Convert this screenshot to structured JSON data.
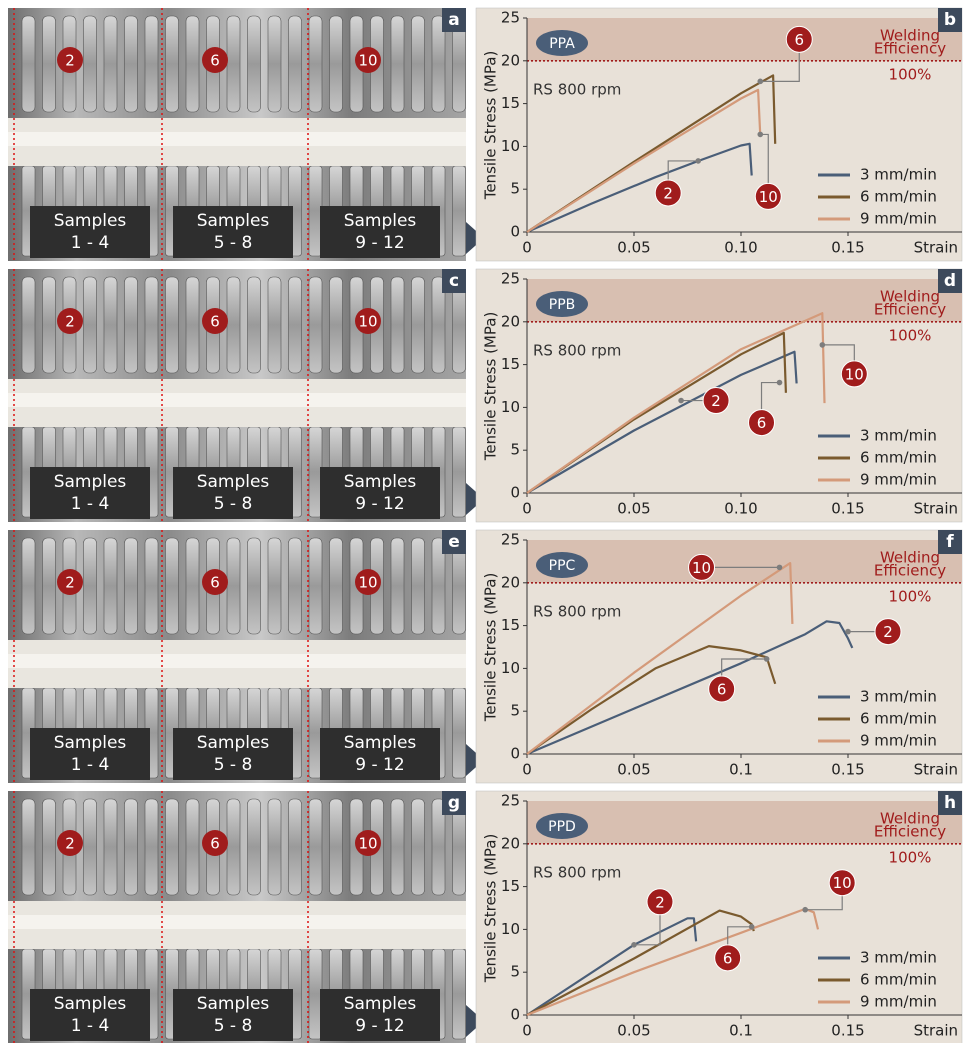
{
  "photos": [
    {
      "panel": "a",
      "markers": [
        "2",
        "6",
        "10"
      ],
      "labels": [
        [
          "Samples",
          "1 - 4"
        ],
        [
          "Samples",
          "5 - 8"
        ],
        [
          "Samples",
          "9 - 12"
        ]
      ]
    },
    {
      "panel": "c",
      "markers": [
        "2",
        "6",
        "10"
      ],
      "labels": [
        [
          "Samples",
          "1 - 4"
        ],
        [
          "Samples",
          "5 - 8"
        ],
        [
          "Samples",
          "9 - 12"
        ]
      ]
    },
    {
      "panel": "e",
      "markers": [
        "2",
        "6",
        "10"
      ],
      "labels": [
        [
          "Samples",
          "1 - 4"
        ],
        [
          "Samples",
          "5 - 8"
        ],
        [
          "Samples",
          "9 - 12"
        ]
      ]
    },
    {
      "panel": "g",
      "markers": [
        "2",
        "6",
        "10"
      ],
      "labels": [
        [
          "Samples",
          "1 - 4"
        ],
        [
          "Samples",
          "5 - 8"
        ],
        [
          "Samples",
          "9 - 12"
        ]
      ]
    }
  ],
  "chart_data": [
    {
      "type": "line",
      "panel": "b",
      "title": "PPA",
      "subtitle": "RS 800 rpm",
      "y_label": "Tensile Stress (MPa)",
      "x_label": "Strain",
      "xlim": [
        0,
        0.2
      ],
      "ylim": [
        0,
        25
      ],
      "xticks": [
        0,
        0.05,
        {
          "value": 0.1,
          "label": "0.10"
        },
        0.15
      ],
      "yticks": [
        0,
        5,
        10,
        15,
        20,
        25
      ],
      "threshold": 20,
      "threshold_label": [
        "Welding",
        "Efficiency",
        "100%"
      ],
      "series": [
        {
          "name": "3 mm/min",
          "color": "#4a5e78",
          "x": [
            0,
            0.03,
            0.06,
            0.08,
            0.1,
            0.104,
            0.105
          ],
          "values": [
            0,
            3.3,
            6.4,
            8.3,
            10.1,
            10.3,
            6.6
          ]
        },
        {
          "name": "6 mm/min",
          "color": "#7a5a2e",
          "x": [
            0,
            0.05,
            0.1,
            0.115,
            0.116
          ],
          "values": [
            0,
            8.2,
            16.2,
            18.3,
            10.3
          ]
        },
        {
          "name": "9 mm/min",
          "color": "#d49a7a",
          "x": [
            0,
            0.05,
            0.1,
            0.108,
            0.109
          ],
          "values": [
            0,
            8,
            15.6,
            16.6,
            11.2
          ]
        }
      ],
      "annotations": [
        {
          "text": "2",
          "x": 0.08,
          "y": 8.3
        },
        {
          "text": "6",
          "x": 0.109,
          "y": 17.6
        },
        {
          "text": "10",
          "x": 0.109,
          "y": 11.4
        }
      ]
    },
    {
      "type": "line",
      "panel": "d",
      "title": "PPB",
      "subtitle": "RS 800 rpm",
      "y_label": "Tensile Stress (MPa)",
      "x_label": "Strain",
      "xlim": [
        0,
        0.2
      ],
      "ylim": [
        0,
        25
      ],
      "xticks": [
        0,
        0.05,
        {
          "value": 0.1,
          "label": "0.10"
        },
        0.15
      ],
      "yticks": [
        0,
        5,
        10,
        15,
        20,
        25
      ],
      "threshold": 20,
      "threshold_label": [
        "Welding",
        "Efficiency",
        "100%"
      ],
      "series": [
        {
          "name": "3 mm/min",
          "color": "#4a5e78",
          "x": [
            0,
            0.05,
            0.1,
            0.125,
            0.126
          ],
          "values": [
            0,
            7.3,
            13.8,
            16.5,
            12.8
          ]
        },
        {
          "name": "6 mm/min",
          "color": "#7a5a2e",
          "x": [
            0,
            0.05,
            0.1,
            0.12,
            0.121
          ],
          "values": [
            0,
            8.6,
            16.2,
            18.7,
            11.7
          ]
        },
        {
          "name": "9 mm/min",
          "color": "#d49a7a",
          "x": [
            0,
            0.05,
            0.1,
            0.138,
            0.139
          ],
          "values": [
            0,
            8.8,
            16.8,
            21,
            10.5
          ]
        }
      ],
      "annotations": [
        {
          "text": "2",
          "x": 0.072,
          "y": 10.8
        },
        {
          "text": "6",
          "x": 0.118,
          "y": 12.9
        },
        {
          "text": "10",
          "x": 0.138,
          "y": 17.3
        }
      ]
    },
    {
      "type": "line",
      "panel": "f",
      "title": "PPC",
      "subtitle": "RS 800 rpm",
      "y_label": "Tensile Stress (MPa)",
      "x_label": "Strain",
      "xlim": [
        0,
        0.2
      ],
      "ylim": [
        0,
        25
      ],
      "xticks": [
        0,
        0.05,
        0.1,
        0.15
      ],
      "yticks": [
        0,
        5,
        10,
        15,
        20,
        25
      ],
      "threshold": 20,
      "threshold_label": [
        "Welding",
        "Efficiency",
        "100%"
      ],
      "series": [
        {
          "name": "3 mm/min",
          "color": "#4a5e78",
          "x": [
            0,
            0.05,
            0.1,
            0.13,
            0.14,
            0.146,
            0.15,
            0.152
          ],
          "values": [
            0,
            5.3,
            10.6,
            14,
            15.5,
            15.3,
            13.5,
            12.4
          ]
        },
        {
          "name": "6 mm/min",
          "color": "#7a5a2e",
          "x": [
            0,
            0.03,
            0.06,
            0.085,
            0.1,
            0.112,
            0.116
          ],
          "values": [
            0,
            5.2,
            10,
            12.6,
            12.1,
            11.3,
            8.2
          ]
        },
        {
          "name": "9 mm/min",
          "color": "#d49a7a",
          "x": [
            0,
            0.05,
            0.1,
            0.123,
            0.124
          ],
          "values": [
            0,
            9.5,
            18.5,
            22.3,
            15.2
          ]
        }
      ],
      "annotations": [
        {
          "text": "10",
          "x": 0.118,
          "y": 21.8
        },
        {
          "text": "2",
          "x": 0.15,
          "y": 14.3
        },
        {
          "text": "6",
          "x": 0.112,
          "y": 11.1
        }
      ]
    },
    {
      "type": "line",
      "panel": "h",
      "title": "PPD",
      "subtitle": "RS 800 rpm",
      "y_label": "Tensile Stress (MPa)",
      "x_label": "Strain",
      "xlim": [
        0,
        0.2
      ],
      "ylim": [
        0,
        25
      ],
      "xticks": [
        0,
        0.05,
        0.1,
        0.15
      ],
      "yticks": [
        0,
        5,
        10,
        15,
        20,
        25
      ],
      "threshold": 20,
      "threshold_label": [
        "Welding",
        "Efficiency",
        "100%"
      ],
      "series": [
        {
          "name": "3 mm/min",
          "color": "#4a5e78",
          "x": [
            0,
            0.05,
            0.075,
            0.078,
            0.079
          ],
          "values": [
            0,
            8.2,
            11.3,
            11.3,
            8.6
          ]
        },
        {
          "name": "6 mm/min",
          "color": "#7a5a2e",
          "x": [
            0,
            0.05,
            0.09,
            0.1,
            0.105,
            0.106
          ],
          "values": [
            0,
            6.6,
            12.2,
            11.5,
            10.6,
            9.8
          ]
        },
        {
          "name": "9 mm/min",
          "color": "#d49a7a",
          "x": [
            0,
            0.05,
            0.1,
            0.13,
            0.134,
            0.136
          ],
          "values": [
            0,
            5,
            9.6,
            12.4,
            12,
            10
          ]
        }
      ],
      "annotations": [
        {
          "text": "2",
          "x": 0.05,
          "y": 8.2
        },
        {
          "text": "6",
          "x": 0.105,
          "y": 10.3
        },
        {
          "text": "10",
          "x": 0.13,
          "y": 12.3
        }
      ]
    }
  ]
}
